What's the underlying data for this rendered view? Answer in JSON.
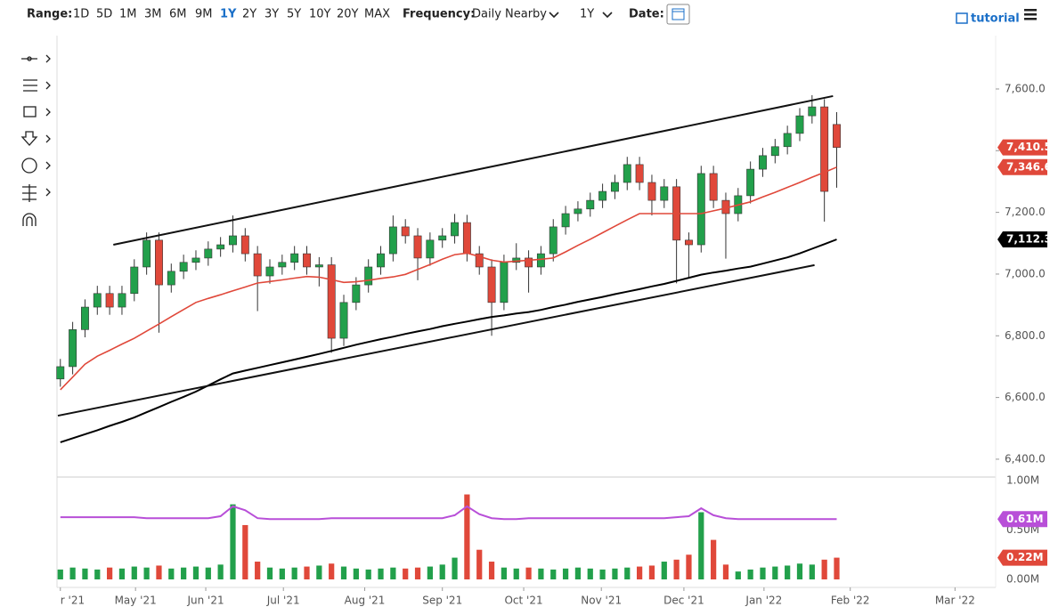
{
  "toolbar": {
    "range_label": "Range:",
    "ranges": [
      "1D",
      "5D",
      "1M",
      "3M",
      "6M",
      "9M",
      "1Y",
      "2Y",
      "3Y",
      "5Y",
      "10Y",
      "20Y",
      "MAX"
    ],
    "active_range": "1Y",
    "frequency_label": "Frequency:",
    "frequency": "Daily Nearby",
    "period": "1Y",
    "date_label": "Date:",
    "tutorial": "tutorial"
  },
  "chart_data": {
    "type": "candlestick",
    "xlim": [
      -0.2,
      75.9
    ],
    "xticks": [
      {
        "value": 0,
        "label": "r '21"
      },
      {
        "value": 6.1,
        "label": "May '21"
      },
      {
        "value": 11.8,
        "label": "Jun '21"
      },
      {
        "value": 18.1,
        "label": "Jul '21"
      },
      {
        "value": 24.7,
        "label": "Aug '21"
      },
      {
        "value": 31.0,
        "label": "Sep '21"
      },
      {
        "value": 37.6,
        "label": "Oct '21"
      },
      {
        "value": 43.9,
        "label": "Nov '21"
      },
      {
        "value": 50.6,
        "label": "Dec '21"
      },
      {
        "value": 57.1,
        "label": "Jan '22"
      },
      {
        "value": 64.1,
        "label": "Feb '22"
      },
      {
        "value": 72.6,
        "label": "Mar '22"
      }
    ],
    "ylim": [
      6345,
      7773
    ],
    "yticks": [
      {
        "value": 6400,
        "label": "6,400.0"
      },
      {
        "value": 6600,
        "label": "6,600.0"
      },
      {
        "value": 6800,
        "label": "6,800.0"
      },
      {
        "value": 7000,
        "label": "7,000.0"
      },
      {
        "value": 7200,
        "label": "7,200.0"
      },
      {
        "value": 7400,
        "label": "7,400.0"
      },
      {
        "value": 7600,
        "label": "7,600.0"
      }
    ],
    "grid": false,
    "up_color": "#22a04b",
    "down_color": "#e0483a",
    "open": [
      6660,
      6700,
      6820,
      6893,
      6937,
      6893,
      6937,
      7023,
      7110,
      6965,
      7009,
      7038,
      7052,
      7081,
      7095,
      7124,
      7066,
      6994,
      7023,
      7038,
      7066,
      7023,
      7030,
      6792,
      6908,
      6965,
      7023,
      7066,
      7153,
      7124,
      7052,
      7110,
      7124,
      7167,
      7066,
      7023,
      6908,
      7038,
      7052,
      7023,
      7066,
      7153,
      7196,
      7211,
      7239,
      7268,
      7297,
      7355,
      7297,
      7239,
      7283,
      7110,
      7095,
      7326,
      7239,
      7196,
      7254,
      7340,
      7384,
      7413,
      7456,
      7513,
      7542,
      7485
    ],
    "high": [
      6725,
      6845,
      6918,
      6962,
      6962,
      6962,
      7048,
      7135,
      7135,
      7034,
      7063,
      7077,
      7106,
      7120,
      7190,
      7149,
      7091,
      7048,
      7063,
      7091,
      7091,
      7055,
      7055,
      6933,
      6990,
      7048,
      7091,
      7190,
      7178,
      7149,
      7135,
      7149,
      7195,
      7192,
      7091,
      7048,
      7063,
      7100,
      7077,
      7091,
      7178,
      7221,
      7236,
      7264,
      7293,
      7322,
      7380,
      7380,
      7322,
      7308,
      7308,
      7135,
      7351,
      7351,
      7264,
      7279,
      7365,
      7409,
      7438,
      7481,
      7538,
      7580,
      7567,
      7525
    ],
    "low": [
      6635,
      6675,
      6795,
      6868,
      6868,
      6868,
      6912,
      6998,
      6810,
      6940,
      6984,
      7013,
      7027,
      7056,
      7070,
      7041,
      6880,
      6969,
      6998,
      7013,
      6998,
      6960,
      6745,
      6767,
      6883,
      6940,
      6998,
      7041,
      7099,
      6980,
      7027,
      7085,
      7099,
      7041,
      6998,
      6800,
      6883,
      7013,
      6940,
      6998,
      7041,
      7128,
      7171,
      7186,
      7214,
      7243,
      7272,
      7272,
      7190,
      7214,
      6970,
      6990,
      7070,
      7214,
      7050,
      7171,
      7229,
      7315,
      7359,
      7388,
      7431,
      7488,
      7170,
      7280
    ],
    "close": [
      6700,
      6820,
      6893,
      6937,
      6893,
      6937,
      7023,
      7110,
      6965,
      7009,
      7038,
      7052,
      7081,
      7095,
      7124,
      7066,
      6994,
      7023,
      7038,
      7066,
      7023,
      7030,
      6792,
      6908,
      6965,
      7023,
      7066,
      7153,
      7124,
      7052,
      7110,
      7124,
      7167,
      7066,
      7023,
      6908,
      7038,
      7052,
      7023,
      7066,
      7153,
      7196,
      7211,
      7239,
      7268,
      7297,
      7355,
      7297,
      7239,
      7283,
      7110,
      7095,
      7326,
      7239,
      7196,
      7254,
      7340,
      7384,
      7413,
      7456,
      7513,
      7542,
      7268,
      7410.5
    ],
    "close_label": "7,410.5",
    "series": [
      {
        "color": "#e0483a",
        "last_label": "7,346.6",
        "values": [
          6625,
          6666,
          6708,
          6734,
          6753,
          6773,
          6792,
          6815,
          6838,
          6862,
          6885,
          6908,
          6921,
          6933,
          6946,
          6958,
          6971,
          6976,
          6981,
          6987,
          6992,
          6990,
          6982,
          6973,
          6975,
          6980,
          6986,
          6991,
          6999,
          7015,
          7031,
          7048,
          7063,
          7068,
          7057,
          7045,
          7039,
          7042,
          7045,
          7048,
          7052,
          7072,
          7093,
          7113,
          7134,
          7155,
          7176,
          7196,
          7196,
          7196,
          7196,
          7196,
          7196,
          7205,
          7214,
          7224,
          7234,
          7250,
          7265,
          7281,
          7297,
          7314,
          7330,
          7346.6
        ]
      },
      {
        "color": "#000000",
        "last_label": "7,112.3",
        "values": [
          6455,
          6468,
          6481,
          6494,
          6508,
          6521,
          6535,
          6552,
          6569,
          6586,
          6602,
          6619,
          6639,
          6659,
          6678,
          6687,
          6696,
          6705,
          6714,
          6723,
          6732,
          6741,
          6751,
          6761,
          6771,
          6780,
          6789,
          6797,
          6806,
          6814,
          6822,
          6831,
          6839,
          6846,
          6854,
          6861,
          6866,
          6872,
          6877,
          6884,
          6893,
          6901,
          6910,
          6918,
          6926,
          6935,
          6943,
          6951,
          6960,
          6968,
          6978,
          6988,
          6998,
          7005,
          7011,
          7018,
          7024,
          7034,
          7044,
          7054,
          7067,
          7082,
          7097,
          7112.3
        ]
      }
    ],
    "trendlines": [
      {
        "x": [
          4.3,
          62.7
        ],
        "values": [
          7095,
          7577
        ]
      },
      {
        "x": [
          -0.2,
          61.2
        ],
        "values": [
          6541,
          7029
        ]
      }
    ],
    "volume": {
      "ylim": [
        -0.081,
        1.027
      ],
      "yticks": [
        {
          "value": 0,
          "label": "0.00M"
        },
        {
          "value": 0.5,
          "label": "0.50M"
        },
        {
          "value": 1,
          "label": "1.00M"
        }
      ],
      "values": [
        0.1,
        0.12,
        0.11,
        0.1,
        0.12,
        0.11,
        0.13,
        0.12,
        0.14,
        0.11,
        0.12,
        0.13,
        0.12,
        0.15,
        0.76,
        0.55,
        0.18,
        0.12,
        0.11,
        0.12,
        0.13,
        0.14,
        0.16,
        0.13,
        0.11,
        0.1,
        0.11,
        0.12,
        0.11,
        0.12,
        0.13,
        0.15,
        0.22,
        0.86,
        0.3,
        0.18,
        0.12,
        0.11,
        0.12,
        0.11,
        0.1,
        0.11,
        0.12,
        0.11,
        0.1,
        0.11,
        0.12,
        0.13,
        0.14,
        0.18,
        0.2,
        0.25,
        0.68,
        0.4,
        0.15,
        0.08,
        0.1,
        0.12,
        0.13,
        0.14,
        0.16,
        0.15,
        0.2,
        0.22
      ],
      "last_label": "0.22M",
      "avg_color": "#b84fd8",
      "avg_label": "0.61M",
      "avg": [
        0.63,
        0.63,
        0.63,
        0.63,
        0.63,
        0.63,
        0.63,
        0.62,
        0.62,
        0.62,
        0.62,
        0.62,
        0.62,
        0.64,
        0.74,
        0.7,
        0.62,
        0.61,
        0.61,
        0.61,
        0.61,
        0.61,
        0.62,
        0.62,
        0.62,
        0.62,
        0.62,
        0.62,
        0.62,
        0.62,
        0.62,
        0.62,
        0.65,
        0.74,
        0.66,
        0.62,
        0.61,
        0.61,
        0.62,
        0.62,
        0.62,
        0.62,
        0.62,
        0.62,
        0.62,
        0.62,
        0.62,
        0.62,
        0.62,
        0.62,
        0.63,
        0.64,
        0.72,
        0.65,
        0.62,
        0.61,
        0.61,
        0.61,
        0.61,
        0.61,
        0.61,
        0.61,
        0.61,
        0.61
      ]
    }
  }
}
